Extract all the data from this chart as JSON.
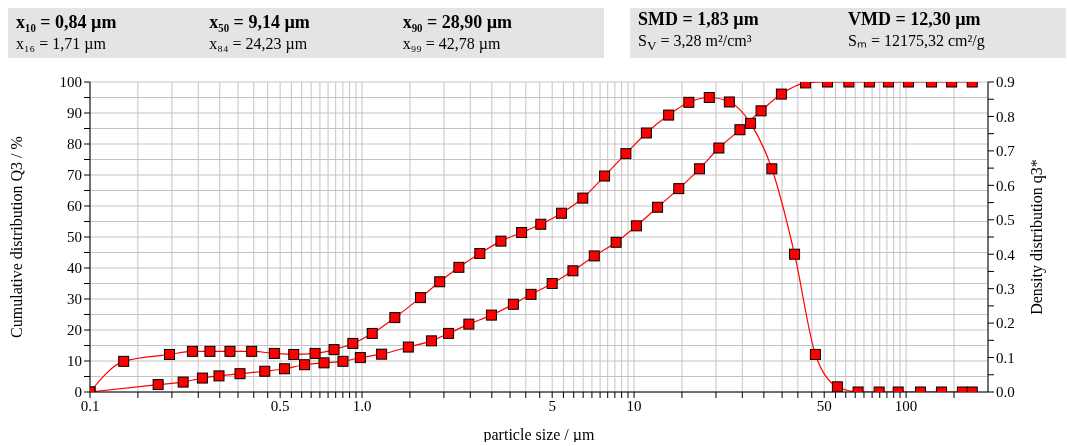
{
  "chart_data": {
    "type": "line",
    "annotations": [
      "x₁₀ = 0,84 µm",
      "x₅₀ = 9,14 µm",
      "x₉₀ = 28,90 µm",
      "x₁₆ = 1,71 µm",
      "x₈₄ = 24,23 µm",
      "x₉₉ = 42,78 µm",
      "SMD = 1,83 µm",
      "VMD = 12,30 µm",
      "S$_{V}$ = 3,28 m²/cm³",
      "Sₘ = 12175,32 cm²/g"
    ],
    "xlabel": "particle size / µm",
    "ylabel": "Cumulative distribution Q3 / %",
    "y2label": "Density distribution q3*",
    "log": "x",
    "grid": true,
    "marker": "square",
    "line_style": "solid",
    "xlim": [
      0.1,
      200
    ],
    "xticks": [
      0.1,
      {
        "value": 0.15,
        "label": null
      },
      {
        "value": 0.2,
        "label": null
      },
      {
        "value": 0.25,
        "label": null
      },
      {
        "value": 0.3,
        "label": null
      },
      {
        "value": 0.35,
        "label": null
      },
      {
        "value": 0.4,
        "label": null
      },
      {
        "value": 0.45,
        "label": null
      },
      0.5,
      {
        "value": 0.55,
        "label": null
      },
      {
        "value": 0.6,
        "label": null
      },
      {
        "value": 0.65,
        "label": null
      },
      {
        "value": 0.7,
        "label": null
      },
      {
        "value": 0.75,
        "label": null
      },
      {
        "value": 0.8,
        "label": null
      },
      {
        "value": 0.85,
        "label": null
      },
      {
        "value": 0.9,
        "label": null
      },
      {
        "value": 0.95,
        "label": null
      },
      {
        "value": 1,
        "label": "1.0"
      },
      {
        "value": 1.5,
        "label": null
      },
      {
        "value": 2,
        "label": null
      },
      {
        "value": 2.5,
        "label": null
      },
      {
        "value": 3,
        "label": null
      },
      {
        "value": 3.5,
        "label": null
      },
      {
        "value": 4,
        "label": null
      },
      {
        "value": 4.5,
        "label": null
      },
      5,
      {
        "value": 5.5,
        "label": null
      },
      {
        "value": 6,
        "label": null
      },
      {
        "value": 6.5,
        "label": null
      },
      {
        "value": 7,
        "label": null
      },
      {
        "value": 7.5,
        "label": null
      },
      {
        "value": 8,
        "label": null
      },
      {
        "value": 8.5,
        "label": null
      },
      {
        "value": 9,
        "label": null
      },
      {
        "value": 9.5,
        "label": null
      },
      10,
      {
        "value": 15,
        "label": null
      },
      {
        "value": 20,
        "label": null
      },
      {
        "value": 25,
        "label": null
      },
      {
        "value": 30,
        "label": null
      },
      {
        "value": 35,
        "label": null
      },
      {
        "value": 40,
        "label": null
      },
      {
        "value": 45,
        "label": null
      },
      50,
      {
        "value": 55,
        "label": null
      },
      {
        "value": 60,
        "label": null
      },
      {
        "value": 65,
        "label": null
      },
      {
        "value": 70,
        "label": null
      },
      {
        "value": 75,
        "label": null
      },
      {
        "value": 80,
        "label": null
      },
      {
        "value": 85,
        "label": null
      },
      {
        "value": 90,
        "label": null
      },
      {
        "value": 95,
        "label": null
      },
      100,
      {
        "value": 150,
        "label": null
      }
    ],
    "ylim": [
      0,
      100
    ],
    "yticks": [
      0,
      {
        "value": 5,
        "label": null
      },
      10,
      {
        "value": 15,
        "label": null
      },
      20,
      {
        "value": 25,
        "label": null
      },
      30,
      {
        "value": 35,
        "label": null
      },
      40,
      {
        "value": 45,
        "label": null
      },
      50,
      {
        "value": 55,
        "label": null
      },
      60,
      {
        "value": 65,
        "label": null
      },
      70,
      {
        "value": 75,
        "label": null
      },
      80,
      {
        "value": 85,
        "label": null
      },
      90,
      {
        "value": 95,
        "label": null
      },
      100
    ],
    "y2lim": [
      0,
      0.9
    ],
    "y2ticks": [
      {
        "value": 0,
        "label": "0.0"
      },
      {
        "value": 0.05,
        "label": null
      },
      0.1,
      {
        "value": 0.15,
        "label": null
      },
      0.2,
      {
        "value": 0.25,
        "label": null
      },
      0.3,
      {
        "value": 0.35,
        "label": null
      },
      0.4,
      {
        "value": 0.45,
        "label": null
      },
      0.5,
      {
        "value": 0.55,
        "label": null
      },
      0.6,
      {
        "value": 0.65,
        "label": null
      },
      0.7,
      {
        "value": 0.75,
        "label": null
      },
      0.8,
      {
        "value": 0.85,
        "label": null
      },
      0.9
    ],
    "series": [
      {
        "color": "#ff0000",
        "x": [
          0.1,
          0.178,
          0.22,
          0.259,
          0.298,
          0.356,
          0.439,
          0.519,
          0.615,
          0.725,
          0.851,
          0.986,
          1.18,
          1.48,
          1.8,
          2.08,
          2.47,
          2.99,
          3.6,
          4.18,
          5.0,
          5.96,
          7.14,
          8.59,
          10.2,
          12.2,
          14.6,
          17.4,
          20.5,
          24.5,
          29.3,
          34.8,
          42.7,
          51.4,
          61.6,
          73.3,
          86.1,
          102,
          124,
          147,
          175
        ],
        "values": [
          0,
          2.4,
          3.2,
          4.5,
          5.2,
          5.9,
          6.7,
          7.5,
          8.8,
          9.4,
          9.9,
          11.1,
          12.2,
          14.5,
          16.5,
          18.9,
          21.9,
          24.8,
          28.3,
          31.5,
          35,
          39.1,
          43.9,
          48.3,
          53.6,
          59.6,
          65.6,
          72,
          78.7,
          84.6,
          90.7,
          96.1,
          99.7,
          100,
          100,
          100,
          100,
          100,
          100,
          100,
          100
        ]
      },
      {
        "color": "#ff0000",
        "axis": "y2",
        "x": [
          0.1,
          0.133,
          0.196,
          0.238,
          0.276,
          0.327,
          0.393,
          0.476,
          0.561,
          0.672,
          0.789,
          0.925,
          1.09,
          1.32,
          1.64,
          1.93,
          2.27,
          2.71,
          3.24,
          3.86,
          4.54,
          5.41,
          6.48,
          7.79,
          9.33,
          11.1,
          13.4,
          15.9,
          18.9,
          22.4,
          26.8,
          32.1,
          38.9,
          46.4,
          55.9,
          66.6,
          79.6,
          93.5,
          113,
          135,
          161,
          175
        ],
        "values": [
          0,
          0.089,
          0.109,
          0.118,
          0.118,
          0.118,
          0.118,
          0.112,
          0.109,
          0.112,
          0.123,
          0.141,
          0.17,
          0.216,
          0.274,
          0.32,
          0.362,
          0.402,
          0.438,
          0.463,
          0.487,
          0.519,
          0.563,
          0.627,
          0.692,
          0.752,
          0.804,
          0.841,
          0.855,
          0.842,
          0.78,
          0.648,
          0.4,
          0.109,
          0.015,
          0,
          0,
          0,
          0,
          0,
          0,
          0
        ]
      }
    ]
  }
}
